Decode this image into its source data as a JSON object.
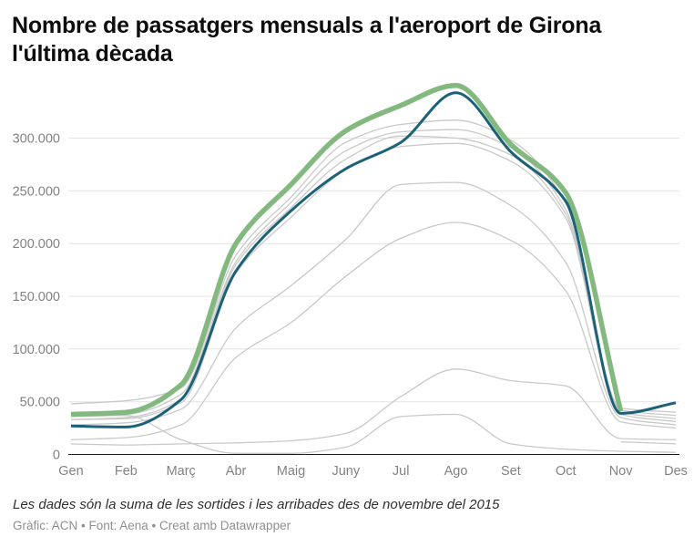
{
  "header": {
    "title_lines": {
      "line1": "Nombre de passatgers mensuals a l'aeroport de Girona",
      "line2": "l'última dècada"
    }
  },
  "footer": {
    "note": "Les dades són la suma de les sortides i les arribades des de novembre del 2015",
    "credits": "Gràfic: ACN • Font: Aena • Creat amb Datawrapper"
  },
  "colors": {
    "background": "#ffffff",
    "gridline": "#e4e4e4",
    "baseline": "#1a1a1a",
    "tick_text": "#828282",
    "gray_series": "#c9c9c9",
    "green_highlight": "#83b87f",
    "teal_highlight": "#1b6177"
  },
  "chart_data": {
    "type": "line",
    "title": "Nombre de passatgers mensuals a l'aeroport de Girona l'última dècada",
    "xlabel": "",
    "ylabel": "",
    "grid": "horizontal",
    "legend": "none",
    "ylim": [
      0,
      360000
    ],
    "categories": [
      "Gen",
      "Feb",
      "Març",
      "Abr",
      "Maig",
      "Juny",
      "Jul",
      "Ago",
      "Set",
      "Oct",
      "Nov",
      "Des"
    ],
    "y_ticks": {
      "values": [
        0,
        50000,
        100000,
        150000,
        200000,
        250000,
        300000
      ],
      "labels": [
        "0",
        "50.000",
        "100.000",
        "150.000",
        "200.000",
        "250.000",
        "300.000"
      ]
    },
    "series": [
      {
        "name": "gray-year-1",
        "role": "context",
        "color": "#c9c9c9",
        "width": 1.3,
        "values": [
          48000,
          51000,
          63000,
          189000,
          244000,
          296000,
          313000,
          317000,
          298000,
          238000,
          44000,
          40000
        ]
      },
      {
        "name": "gray-year-2",
        "role": "context",
        "color": "#c9c9c9",
        "width": 1.3,
        "values": [
          36000,
          38000,
          57000,
          183000,
          239000,
          288000,
          306000,
          308000,
          291000,
          232000,
          42000,
          37000
        ]
      },
      {
        "name": "gray-year-3",
        "role": "context",
        "color": "#c9c9c9",
        "width": 1.3,
        "values": [
          33000,
          35000,
          52000,
          180000,
          234000,
          280000,
          302000,
          300000,
          284000,
          228000,
          40000,
          34000
        ]
      },
      {
        "name": "gray-year-4",
        "role": "context",
        "color": "#c9c9c9",
        "width": 1.3,
        "values": [
          33000,
          34000,
          49000,
          172000,
          225000,
          270000,
          292000,
          295000,
          278000,
          224000,
          38000,
          31000
        ]
      },
      {
        "name": "gray-year-5",
        "role": "context",
        "color": "#c9c9c9",
        "width": 1.3,
        "values": [
          28000,
          30000,
          43000,
          120000,
          160000,
          204000,
          256000,
          258000,
          236000,
          182000,
          35000,
          28000
        ]
      },
      {
        "name": "gray-year-6",
        "role": "context",
        "color": "#c9c9c9",
        "width": 1.3,
        "values": [
          14000,
          16000,
          28000,
          92000,
          125000,
          169000,
          205000,
          220000,
          203000,
          155000,
          31000,
          25000
        ]
      },
      {
        "name": "gray-year-7",
        "role": "context",
        "color": "#c9c9c9",
        "width": 1.3,
        "values": [
          10000,
          9000,
          10000,
          11000,
          13000,
          20000,
          55000,
          81000,
          70000,
          65000,
          15000,
          14000
        ]
      },
      {
        "name": "gray-year-8",
        "role": "context",
        "color": "#c9c9c9",
        "width": 1.3,
        "values": [
          36000,
          37000,
          14000,
          1000,
          1000,
          7000,
          36000,
          38000,
          10000,
          5000,
          3000,
          2000
        ]
      },
      {
        "name": "gray-year-partial",
        "role": "context",
        "color": "#c9c9c9",
        "width": 1.3,
        "values": [
          null,
          null,
          null,
          null,
          null,
          null,
          null,
          null,
          null,
          null,
          12000,
          10000
        ]
      },
      {
        "name": "highlight-green",
        "role": "highlight",
        "color": "#83b87f",
        "width": 5.5,
        "values": [
          38000,
          40000,
          66000,
          200000,
          256000,
          307000,
          331000,
          350000,
          294000,
          248000,
          41000,
          null
        ]
      },
      {
        "name": "highlight-teal",
        "role": "highlight",
        "color": "#1b6177",
        "width": 3,
        "values": [
          27000,
          26000,
          52000,
          174000,
          231000,
          271000,
          296000,
          343000,
          287000,
          240000,
          39000,
          49000
        ]
      }
    ]
  }
}
